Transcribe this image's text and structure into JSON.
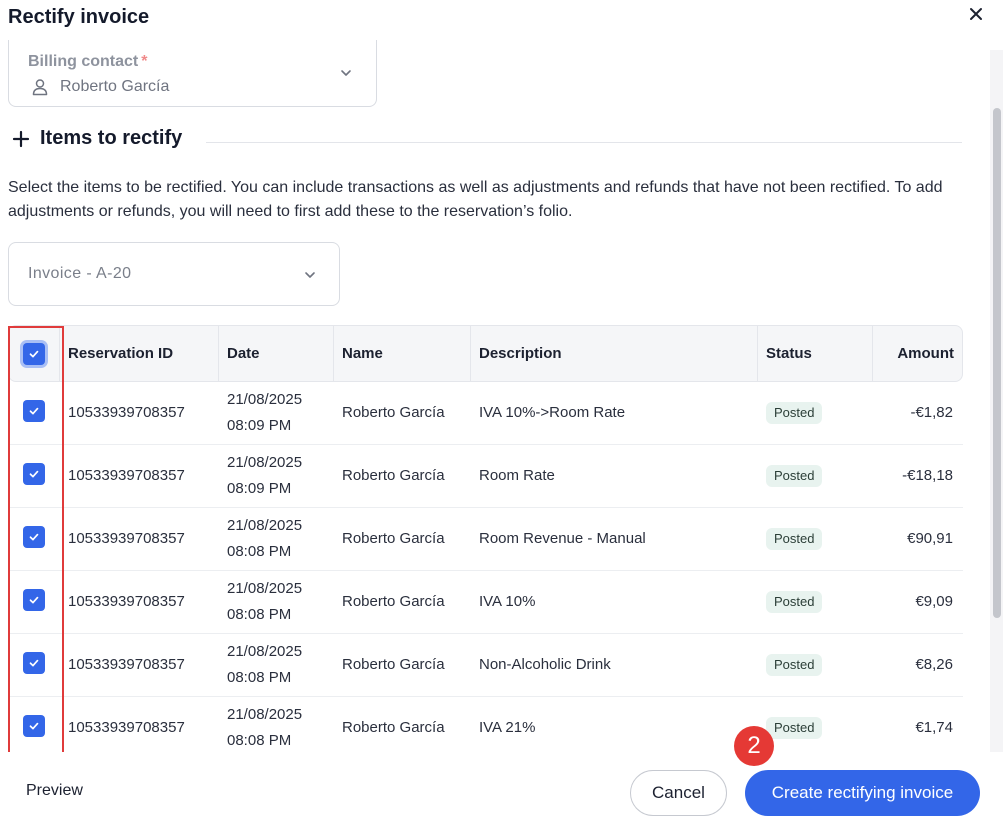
{
  "modal": {
    "title": "Rectify invoice"
  },
  "billing_contact": {
    "label": "Billing contact",
    "required_mark": "*",
    "value": "Roberto García"
  },
  "items_section": {
    "title": "Items to rectify",
    "help_text": "Select the items to be rectified. You can include transactions as well as adjustments and refunds that have not been rectified. To add adjustments or refunds, you will need to first add these to the reservation’s folio."
  },
  "invoice_select": {
    "value": "Invoice - A-20"
  },
  "table": {
    "columns": {
      "reservation_id": "Reservation ID",
      "date": "Date",
      "name": "Name",
      "description": "Description",
      "status": "Status",
      "amount": "Amount"
    },
    "rows": [
      {
        "checked": true,
        "reservation_id": "10533939708357",
        "date": "21/08/2025",
        "time": "08:09 PM",
        "name": "Roberto García",
        "description": "IVA 10%->Room Rate",
        "status": "Posted",
        "amount": "-€1,82"
      },
      {
        "checked": true,
        "reservation_id": "10533939708357",
        "date": "21/08/2025",
        "time": "08:09 PM",
        "name": "Roberto García",
        "description": "Room Rate",
        "status": "Posted",
        "amount": "-€18,18"
      },
      {
        "checked": true,
        "reservation_id": "10533939708357",
        "date": "21/08/2025",
        "time": "08:08 PM",
        "name": "Roberto García",
        "description": "Room Revenue - Manual",
        "status": "Posted",
        "amount": "€90,91"
      },
      {
        "checked": true,
        "reservation_id": "10533939708357",
        "date": "21/08/2025",
        "time": "08:08 PM",
        "name": "Roberto García",
        "description": "IVA 10%",
        "status": "Posted",
        "amount": "€9,09"
      },
      {
        "checked": true,
        "reservation_id": "10533939708357",
        "date": "21/08/2025",
        "time": "08:08 PM",
        "name": "Roberto García",
        "description": "Non-Alcoholic Drink",
        "status": "Posted",
        "amount": "€8,26"
      },
      {
        "checked": true,
        "reservation_id": "10533939708357",
        "date": "21/08/2025",
        "time": "08:08 PM",
        "name": "Roberto García",
        "description": "IVA 21%",
        "status": "Posted",
        "amount": "€1,74"
      }
    ]
  },
  "annotation": {
    "step_number": "2",
    "highlight_color": "#e03b3b"
  },
  "footer": {
    "preview_label": "Preview",
    "cancel_label": "Cancel",
    "create_label": "Create rectifying invoice"
  },
  "colors": {
    "primary": "#3366e8",
    "badge_bg": "#e8f3ef",
    "step_badge": "#e53935"
  },
  "icons": {
    "close": "close-icon",
    "user": "user-icon",
    "chevron": "chevron-down-icon",
    "plus": "plus-icon",
    "check": "checkmark-icon"
  }
}
